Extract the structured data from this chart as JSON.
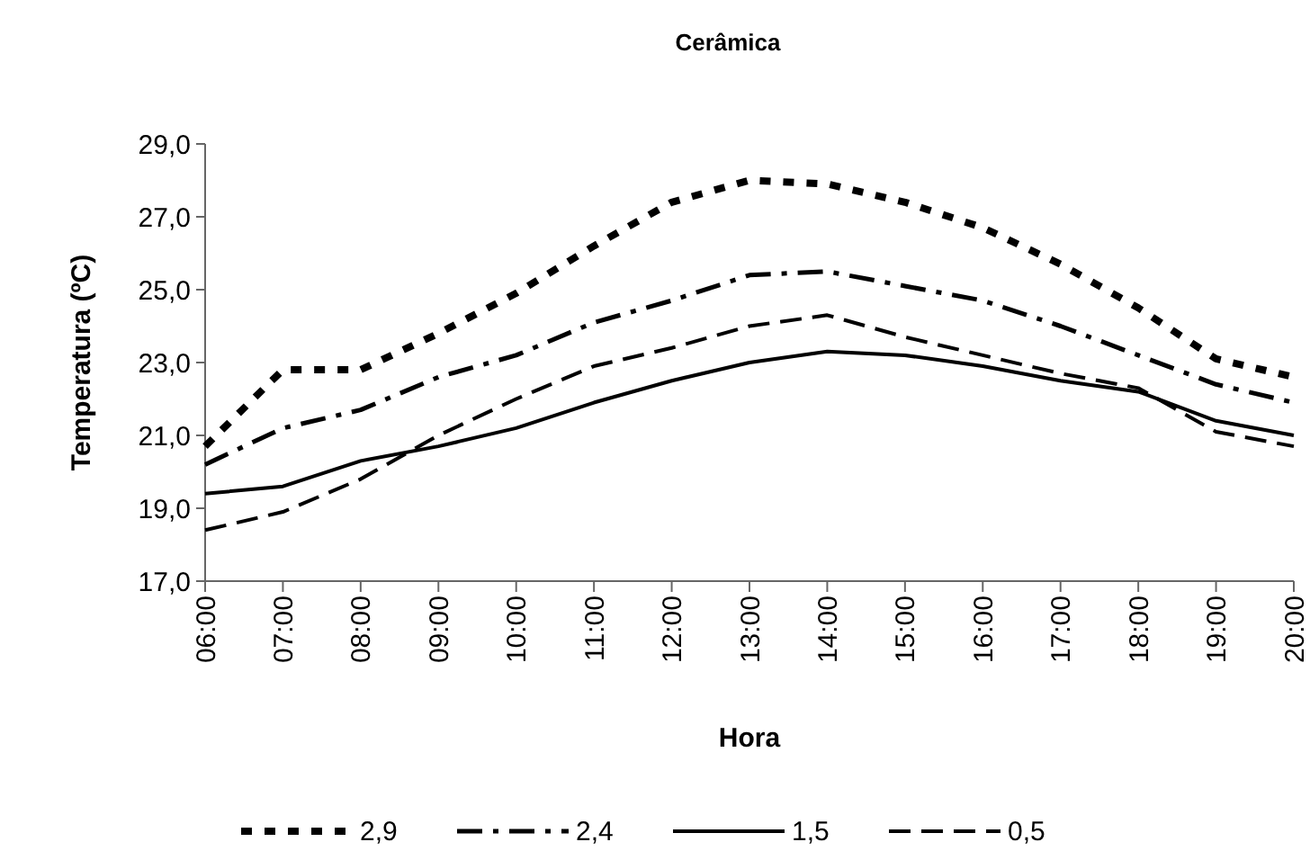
{
  "chart_data": {
    "type": "line",
    "title": "Cerâmica",
    "xlabel": "Hora",
    "ylabel": "Temperatura (ºC)",
    "categories": [
      "06:00",
      "07:00",
      "08:00",
      "09:00",
      "10:00",
      "11:00",
      "12:00",
      "13:00",
      "14:00",
      "15:00",
      "16:00",
      "17:00",
      "18:00",
      "19:00",
      "20:00"
    ],
    "ylim": [
      17,
      29
    ],
    "yticks": [
      {
        "value": 17,
        "label": "17,0"
      },
      {
        "value": 19,
        "label": "19,0"
      },
      {
        "value": 21,
        "label": "21,0"
      },
      {
        "value": 23,
        "label": "23,0"
      },
      {
        "value": 25,
        "label": "25,0"
      },
      {
        "value": 27,
        "label": "27,0"
      },
      {
        "value": 29,
        "label": "29,0"
      }
    ],
    "grid": false,
    "legend": "bottom",
    "marker": "none",
    "series": [
      {
        "name": "2,9",
        "color": "#000000",
        "line_style": "dotted",
        "values": [
          20.7,
          22.8,
          22.8,
          23.8,
          24.9,
          26.2,
          27.4,
          28.0,
          27.9,
          27.4,
          26.7,
          25.7,
          24.5,
          23.1,
          22.6
        ]
      },
      {
        "name": "2,4",
        "color": "#000000",
        "line_style": "dashdot",
        "values": [
          20.2,
          21.2,
          21.7,
          22.6,
          23.2,
          24.1,
          24.7,
          25.4,
          25.5,
          25.1,
          24.7,
          24.0,
          23.2,
          22.4,
          21.9
        ]
      },
      {
        "name": "1,5",
        "color": "#000000",
        "line_style": "solid",
        "values": [
          19.4,
          19.6,
          20.3,
          20.7,
          21.2,
          21.9,
          22.5,
          23.0,
          23.3,
          23.2,
          22.9,
          22.5,
          22.2,
          21.4,
          21.0
        ]
      },
      {
        "name": "0,5",
        "color": "#000000",
        "line_style": "dashed",
        "values": [
          18.4,
          18.9,
          19.8,
          21.0,
          22.0,
          22.9,
          23.4,
          24.0,
          24.3,
          23.7,
          23.2,
          22.7,
          22.3,
          21.1,
          20.7
        ]
      }
    ]
  }
}
